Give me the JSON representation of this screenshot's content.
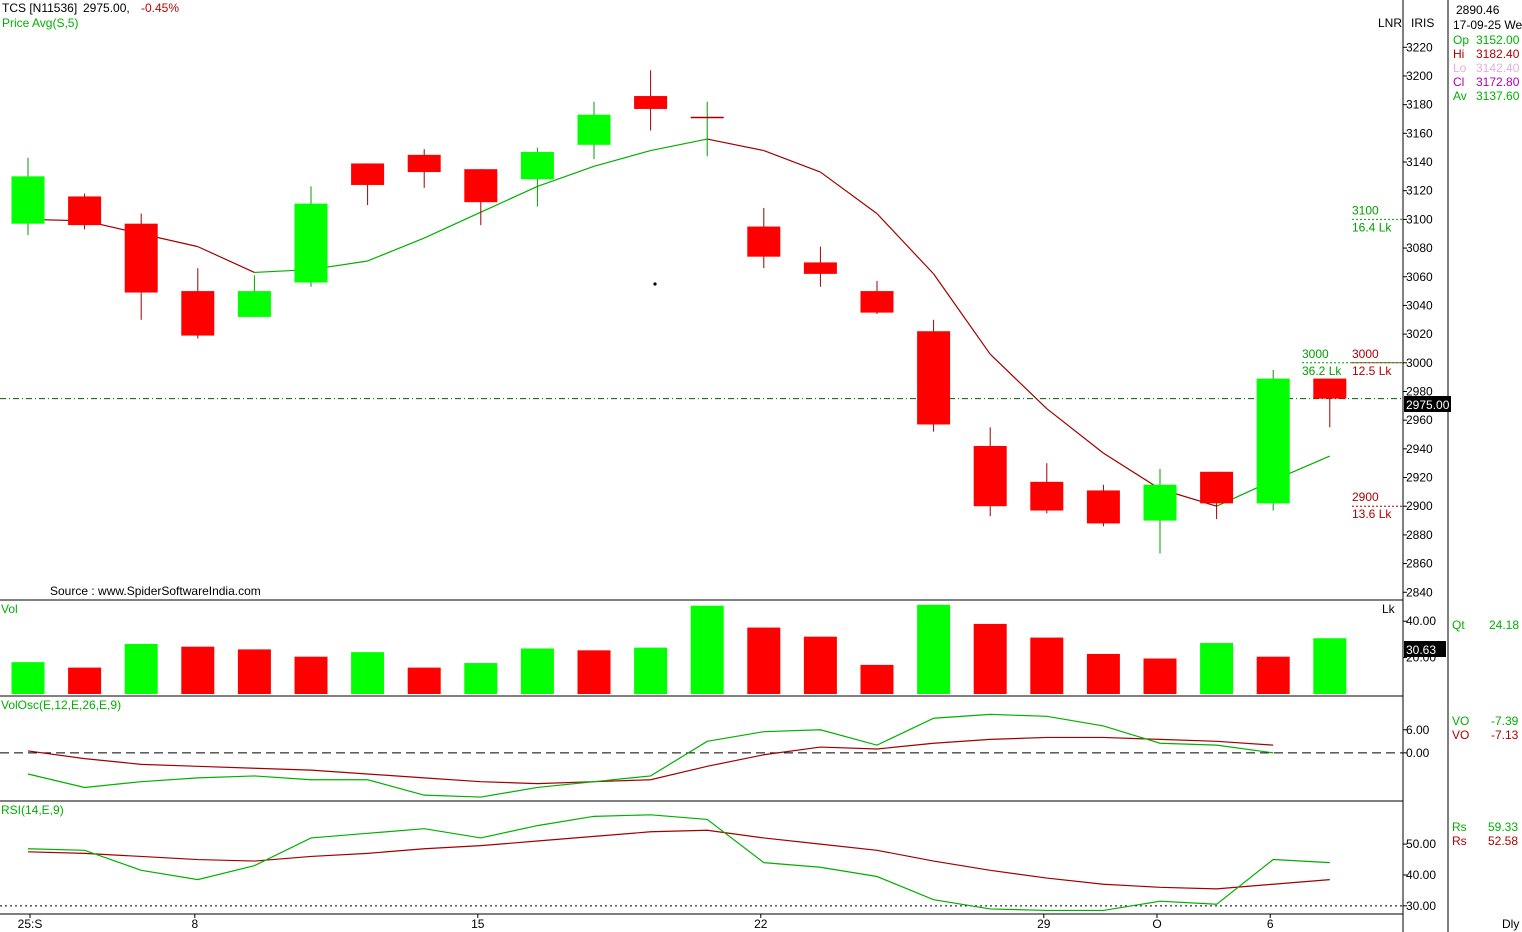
{
  "header": {
    "symbol": "TCS [N11536]",
    "last": "2975.00,",
    "change": "-0.45%",
    "indicator": "Price  Avg(S,5)"
  },
  "right_panel": {
    "scale_mode": "LNR",
    "feed": "IRIS",
    "cursor_price": "2890.46",
    "date": "17-09-25 We",
    "ohlc": [
      {
        "label": "Op",
        "value": "3152.00",
        "color": "#00b000"
      },
      {
        "label": "Hi",
        "value": "3182.40",
        "color": "#b00000"
      },
      {
        "label": "Lo",
        "value": "3142.40",
        "color": "#e0b0e0"
      },
      {
        "label": "Cl",
        "value": "3172.80",
        "color": "#b000b0"
      },
      {
        "label": "Av",
        "value": "3137.60",
        "color": "#00b000"
      }
    ],
    "last_price_box": "2975.00",
    "qt_label": "Qt",
    "qt_value": "24.18",
    "vol_box": "30.63",
    "vol_unit": "Lk",
    "vo1_label": "VO",
    "vo1_value": "-7.39",
    "vo2_label": "VO",
    "vo2_value": "-7.13",
    "rs1_label": "Rs",
    "rs1_value": "59.33",
    "rs2_label": "Rs",
    "rs2_value": "52.58",
    "period": "Dly"
  },
  "source_text": "Source : www.SpiderSoftwareIndia.com",
  "panels": {
    "vol_title": "Vol",
    "volosc_title": "VolOsc(E,12,E,26,E,9)",
    "rsi_title": "RSI(14,E,9)"
  },
  "annotations": [
    {
      "price": 3100,
      "label": "3100",
      "sub": "16.4 Lk",
      "color": "#00a000"
    },
    {
      "price": 3000,
      "label": "3000",
      "sub": "36.2 Lk",
      "color": "#00a000"
    },
    {
      "price": 3000,
      "label": "3000",
      "sub": "12.5 Lk",
      "color": "#b00000"
    },
    {
      "price": 2900,
      "label": "2900",
      "sub": "13.6 Lk",
      "color": "#b00000"
    }
  ],
  "colors": {
    "up": "#00ff00",
    "down": "#ff0000",
    "sma": "#00b000",
    "sma_down": "#a00000",
    "signal": "#a00000",
    "last_line": "#006000"
  },
  "chart_data": {
    "type": "candlestick",
    "price_axis": {
      "ticks": [
        2840,
        2860,
        2880,
        2900,
        2920,
        2940,
        2960,
        2980,
        3000,
        3020,
        3040,
        3060,
        3080,
        3100,
        3120,
        3140,
        3160,
        3180,
        3200,
        3220
      ],
      "range": [
        2836,
        3246
      ]
    },
    "x_labels": [
      {
        "index": 0,
        "label": "25:S"
      },
      {
        "index": 3,
        "label": "8"
      },
      {
        "index": 8,
        "label": "15"
      },
      {
        "index": 13,
        "label": "22"
      },
      {
        "index": 18,
        "label": "29"
      },
      {
        "index": 20,
        "label": "O"
      },
      {
        "index": 22,
        "label": "6"
      }
    ],
    "candles": [
      {
        "o": 3097,
        "h": 3143,
        "l": 3089,
        "c": 3130
      },
      {
        "o": 3116,
        "h": 3118,
        "l": 3093,
        "c": 3096
      },
      {
        "o": 3097,
        "h": 3104,
        "l": 3030,
        "c": 3049
      },
      {
        "o": 3050,
        "h": 3066,
        "l": 3017,
        "c": 3019
      },
      {
        "o": 3032,
        "h": 3061,
        "l": 3032,
        "c": 3050
      },
      {
        "o": 3056,
        "h": 3123,
        "l": 3053,
        "c": 3111
      },
      {
        "o": 3139,
        "h": 3139,
        "l": 3110,
        "c": 3124
      },
      {
        "o": 3145,
        "h": 3149,
        "l": 3122,
        "c": 3133
      },
      {
        "o": 3135,
        "h": 3135,
        "l": 3096,
        "c": 3112
      },
      {
        "o": 3128,
        "h": 3150,
        "l": 3109,
        "c": 3147
      },
      {
        "o": 3152,
        "h": 3182,
        "l": 3142,
        "c": 3173
      },
      {
        "o": 3186,
        "h": 3204,
        "l": 3162,
        "c": 3177
      },
      {
        "o": 3171,
        "h": 3182,
        "l": 3144,
        "c": 3171
      },
      {
        "o": 3095,
        "h": 3108,
        "l": 3066,
        "c": 3074
      },
      {
        "o": 3070,
        "h": 3081,
        "l": 3053,
        "c": 3062
      },
      {
        "o": 3050,
        "h": 3057,
        "l": 3034,
        "c": 3035
      },
      {
        "o": 3022,
        "h": 3030,
        "l": 2952,
        "c": 2957
      },
      {
        "o": 2942,
        "h": 2955,
        "l": 2893,
        "c": 2900
      },
      {
        "o": 2917,
        "h": 2930,
        "l": 2895,
        "c": 2897
      },
      {
        "o": 2911,
        "h": 2915,
        "l": 2886,
        "c": 2888
      },
      {
        "o": 2890,
        "h": 2926,
        "l": 2867,
        "c": 2915
      },
      {
        "o": 2924,
        "h": 2924,
        "l": 2891,
        "c": 2902
      },
      {
        "o": 2902,
        "h": 2995,
        "l": 2897,
        "c": 2989
      },
      {
        "o": 2989,
        "h": 2989,
        "l": 2955,
        "c": 2975
      }
    ],
    "sma5": [
      3100,
      3099,
      null,
      3081,
      3063,
      3065,
      3071,
      3087,
      3105,
      3123,
      3137,
      3148,
      3156,
      3148,
      3133,
      3104,
      3062,
      3006,
      2968,
      2937,
      2912,
      2900,
      2918,
      2935
    ],
    "last_price": 2975,
    "volume": {
      "ticks": [
        20,
        40
      ],
      "range": [
        0,
        50
      ],
      "values": [
        17.5,
        14.5,
        27.5,
        26,
        24.5,
        20.5,
        23,
        14.5,
        17,
        25,
        24,
        25.5,
        48.5,
        36.5,
        31.5,
        16,
        49,
        38.5,
        31,
        22,
        19.5,
        28,
        20.5,
        30.63
      ],
      "up": [
        true,
        false,
        true,
        false,
        false,
        false,
        true,
        false,
        true,
        true,
        false,
        true,
        true,
        false,
        false,
        false,
        true,
        false,
        false,
        false,
        false,
        true,
        false,
        true
      ]
    },
    "volosc": {
      "ticks": [
        0,
        6
      ],
      "range": [
        -12,
        14
      ],
      "vo": [
        -5.5,
        -9,
        -7.5,
        -6.5,
        -6,
        -7,
        -7,
        -11,
        -11.5,
        -9,
        -7.5,
        -6,
        3,
        5.5,
        6,
        2,
        9,
        10,
        9.5,
        7,
        2.5,
        2,
        0,
        -7.39
      ],
      "signal": [
        0.5,
        -1.5,
        -3,
        -3.5,
        -4,
        -4.5,
        -5.5,
        -6.5,
        -7.5,
        -8,
        -7.5,
        -7,
        -3.5,
        -0.5,
        1.5,
        1,
        2.5,
        3.5,
        4,
        4,
        3.5,
        3,
        2,
        -7.13
      ]
    },
    "rsi": {
      "ticks": [
        30,
        40,
        50
      ],
      "range": [
        28,
        63
      ],
      "rsi": [
        48.5,
        48,
        41.5,
        38.5,
        43,
        52,
        53.5,
        55,
        52,
        56,
        59,
        59.5,
        58,
        44,
        42.5,
        39.5,
        32,
        29,
        28.5,
        28.5,
        31.5,
        30.5,
        45,
        44
      ],
      "signal": [
        47.5,
        47,
        46,
        45,
        44.5,
        46,
        47,
        48.5,
        49.5,
        51,
        52.5,
        54,
        54.5,
        52,
        50,
        48,
        44.5,
        41.5,
        39,
        37,
        36,
        35.5,
        37,
        38.5
      ],
      "guide": 30
    }
  }
}
